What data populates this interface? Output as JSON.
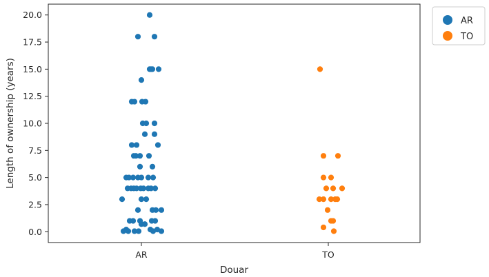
{
  "chart_data": {
    "type": "scatter",
    "subtype": "strip",
    "xlabel": "Douar",
    "ylabel": "Length of ownership (years)",
    "categories": [
      "AR",
      "TO"
    ],
    "ylim": [
      -1.0,
      21.0
    ],
    "yticks": [
      0.0,
      2.5,
      5.0,
      7.5,
      10.0,
      12.5,
      15.0,
      17.5,
      20.0
    ],
    "ytick_labels": [
      "0.0",
      "2.5",
      "5.0",
      "7.5",
      "10.0",
      "12.5",
      "15.0",
      "17.5",
      "20.0"
    ],
    "grid": false,
    "legend": {
      "placement": "outside-top-right",
      "entries": [
        "AR",
        "TO"
      ]
    },
    "series": [
      {
        "name": "AR",
        "color": "#1f77b4",
        "points": [
          {
            "y": 20,
            "j": 0.12
          },
          {
            "y": 18,
            "j": -0.05
          },
          {
            "y": 18,
            "j": 0.19
          },
          {
            "y": 15,
            "j": 0.12
          },
          {
            "y": 15,
            "j": 0.14
          },
          {
            "y": 15,
            "j": 0.16
          },
          {
            "y": 15,
            "j": 0.25
          },
          {
            "y": 14,
            "j": 0.0
          },
          {
            "y": 12,
            "j": -0.14
          },
          {
            "y": 12,
            "j": -0.1
          },
          {
            "y": 12,
            "j": 0.01
          },
          {
            "y": 12,
            "j": 0.06
          },
          {
            "y": 10,
            "j": 0.02
          },
          {
            "y": 10,
            "j": 0.07
          },
          {
            "y": 10,
            "j": 0.19
          },
          {
            "y": 9,
            "j": 0.05
          },
          {
            "y": 9,
            "j": 0.19
          },
          {
            "y": 8,
            "j": -0.14
          },
          {
            "y": 8,
            "j": -0.07
          },
          {
            "y": 8,
            "j": 0.24
          },
          {
            "y": 7,
            "j": -0.11
          },
          {
            "y": 7,
            "j": -0.08
          },
          {
            "y": 7,
            "j": -0.02
          },
          {
            "y": 7,
            "j": 0.11
          },
          {
            "y": 6,
            "j": -0.02
          },
          {
            "y": 6,
            "j": 0.16
          },
          {
            "y": 5,
            "j": -0.22
          },
          {
            "y": 5,
            "j": -0.18
          },
          {
            "y": 5,
            "j": -0.12
          },
          {
            "y": 5,
            "j": -0.05
          },
          {
            "y": 5,
            "j": 0.0
          },
          {
            "y": 5,
            "j": 0.1
          },
          {
            "y": 5,
            "j": 0.17
          },
          {
            "y": 4,
            "j": -0.2
          },
          {
            "y": 4,
            "j": -0.15
          },
          {
            "y": 4,
            "j": -0.11
          },
          {
            "y": 4,
            "j": -0.07
          },
          {
            "y": 4,
            "j": -0.01
          },
          {
            "y": 4,
            "j": 0.03
          },
          {
            "y": 4,
            "j": 0.1
          },
          {
            "y": 4,
            "j": 0.14
          },
          {
            "y": 4,
            "j": 0.2
          },
          {
            "y": 3,
            "j": -0.28
          },
          {
            "y": 3,
            "j": 0.0
          },
          {
            "y": 3,
            "j": 0.07
          },
          {
            "y": 2,
            "j": -0.05
          },
          {
            "y": 2,
            "j": 0.16
          },
          {
            "y": 2,
            "j": 0.21
          },
          {
            "y": 2,
            "j": 0.29
          },
          {
            "y": 1,
            "j": -0.17
          },
          {
            "y": 1,
            "j": -0.12
          },
          {
            "y": 1,
            "j": -0.02
          },
          {
            "y": 1,
            "j": 0.15
          },
          {
            "y": 1,
            "j": 0.2
          },
          {
            "y": 0.7,
            "j": 0.0
          },
          {
            "y": 0.7,
            "j": 0.05
          },
          {
            "y": 0.2,
            "j": -0.22
          },
          {
            "y": 0.2,
            "j": 0.13
          },
          {
            "y": 0.2,
            "j": 0.23
          },
          {
            "y": 0.05,
            "j": -0.26
          },
          {
            "y": 0.05,
            "j": -0.19
          },
          {
            "y": 0.05,
            "j": -0.1
          },
          {
            "y": 0.05,
            "j": -0.04
          },
          {
            "y": 0.05,
            "j": 0.17
          },
          {
            "y": 0.05,
            "j": 0.29
          }
        ]
      },
      {
        "name": "TO",
        "color": "#ff7f0e",
        "points": [
          {
            "y": 15,
            "j": -0.12
          },
          {
            "y": 7,
            "j": -0.07
          },
          {
            "y": 7,
            "j": 0.14
          },
          {
            "y": 5,
            "j": -0.07
          },
          {
            "y": 5,
            "j": 0.04
          },
          {
            "y": 4,
            "j": -0.03
          },
          {
            "y": 4,
            "j": 0.07
          },
          {
            "y": 4,
            "j": 0.2
          },
          {
            "y": 3,
            "j": -0.13
          },
          {
            "y": 3,
            "j": -0.07
          },
          {
            "y": 3,
            "j": 0.04
          },
          {
            "y": 3,
            "j": 0.1
          },
          {
            "y": 3,
            "j": 0.13
          },
          {
            "y": 2,
            "j": -0.01
          },
          {
            "y": 1,
            "j": 0.04
          },
          {
            "y": 1,
            "j": 0.07
          },
          {
            "y": 0.4,
            "j": -0.07
          },
          {
            "y": 0.05,
            "j": 0.08
          }
        ]
      }
    ]
  }
}
